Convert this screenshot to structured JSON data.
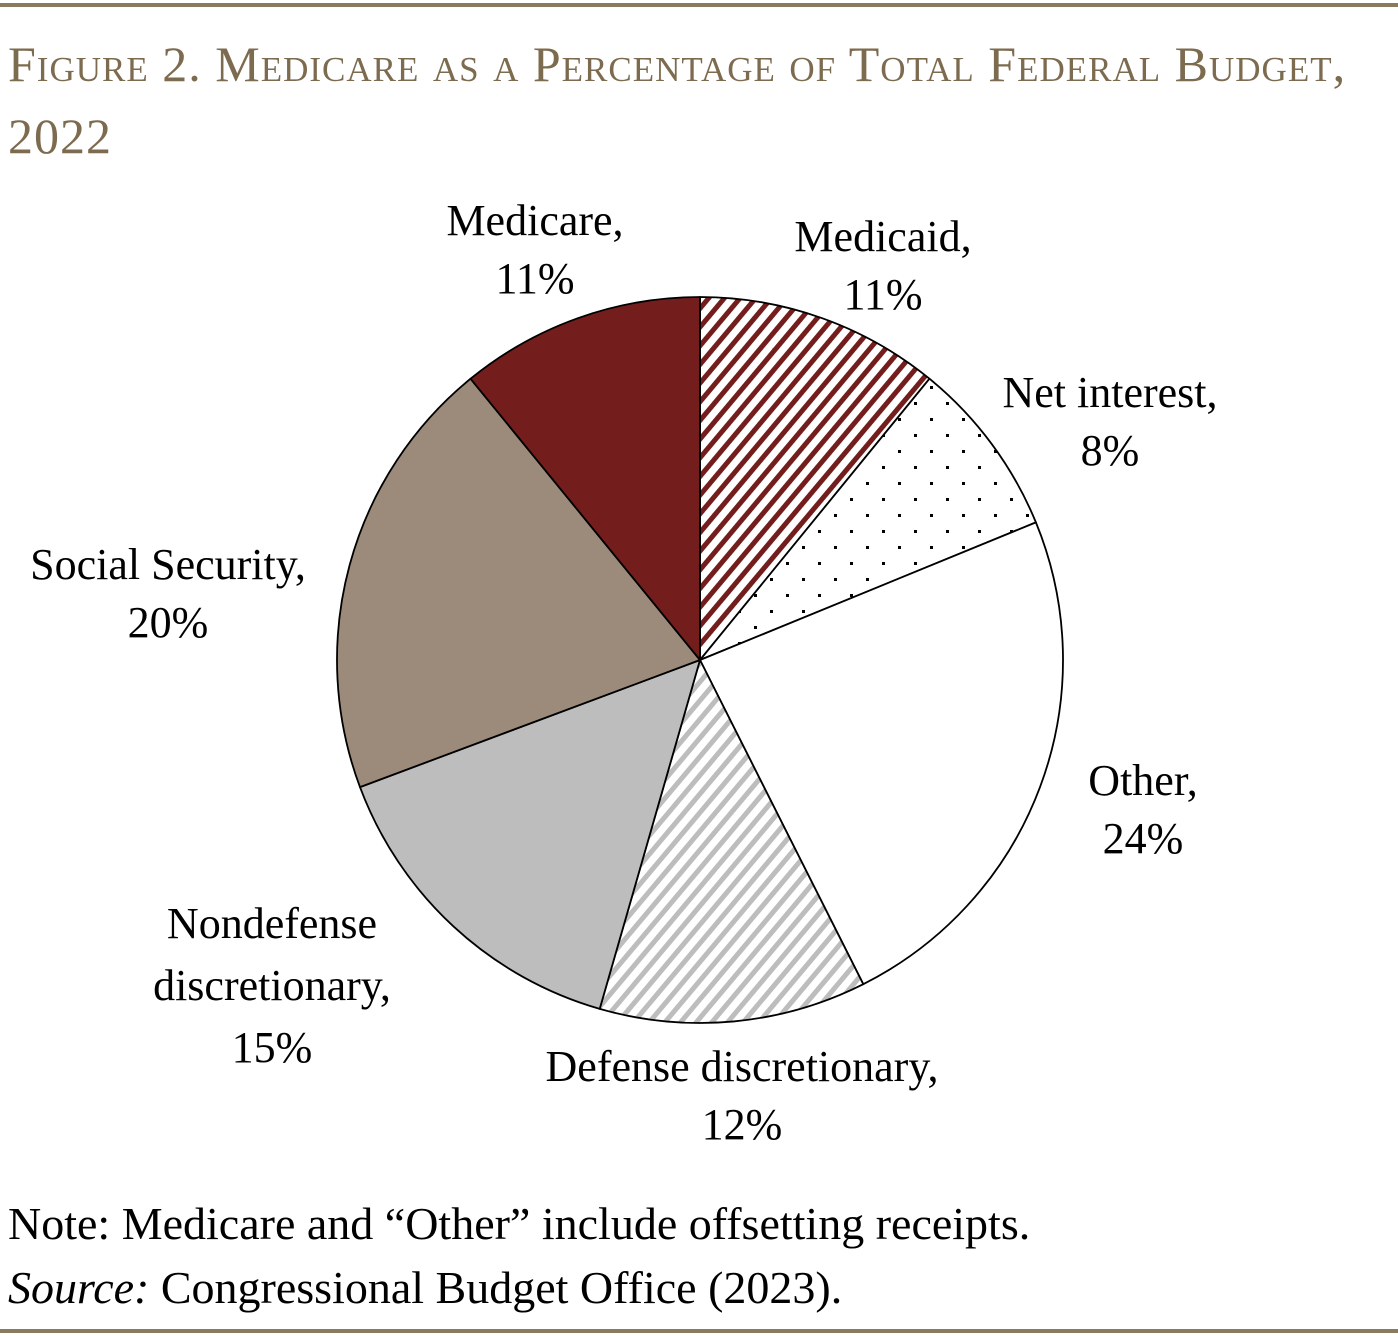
{
  "title": "Figure 2. Medicare as a Percentage of Total Federal Budget, 2022",
  "chart_data": {
    "type": "pie",
    "title": "Figure 2. Medicare as a Percentage of Total Federal Budget, 2022",
    "start": "12 o'clock, clockwise",
    "slices": [
      {
        "name": "Medicaid",
        "label": "Medicaid,",
        "pct_label": "11%",
        "value": 11,
        "fill": "stripes",
        "color": "#731e1c"
      },
      {
        "name": "Net interest",
        "label": "Net interest,",
        "pct_label": "8%",
        "value": 8,
        "fill": "dots",
        "color": "#000000"
      },
      {
        "name": "Other",
        "label": "Other,",
        "pct_label": "24%",
        "value": 24,
        "fill": "solid",
        "color": "#ffffff"
      },
      {
        "name": "Defense discretionary",
        "label": "Defense discretionary,",
        "pct_label": "12%",
        "value": 12,
        "fill": "stripes",
        "color": "#bdbdbd"
      },
      {
        "name": "Nondefense discretionary",
        "label": "Nondefense discretionary,",
        "pct_label": "15%",
        "value": 15,
        "fill": "solid",
        "color": "#bdbdbd"
      },
      {
        "name": "Social Security",
        "label": "Social Security,",
        "pct_label": "20%",
        "value": 20,
        "fill": "solid",
        "color": "#9c8b7a"
      },
      {
        "name": "Medicare",
        "label": "Medicare,",
        "pct_label": "11%",
        "value": 11,
        "fill": "solid",
        "color": "#731e1c"
      }
    ]
  },
  "labels": {
    "nondefense_line1": "Nondefense",
    "nondefense_line2": "discretionary,"
  },
  "note": "Note: Medicare and “Other” include offsetting receipts.",
  "source_label": "Source:",
  "source_text": " Congressional Budget Office (2023).",
  "colors": {
    "rule": "#8b7b5e",
    "title": "#7d6b4f"
  }
}
